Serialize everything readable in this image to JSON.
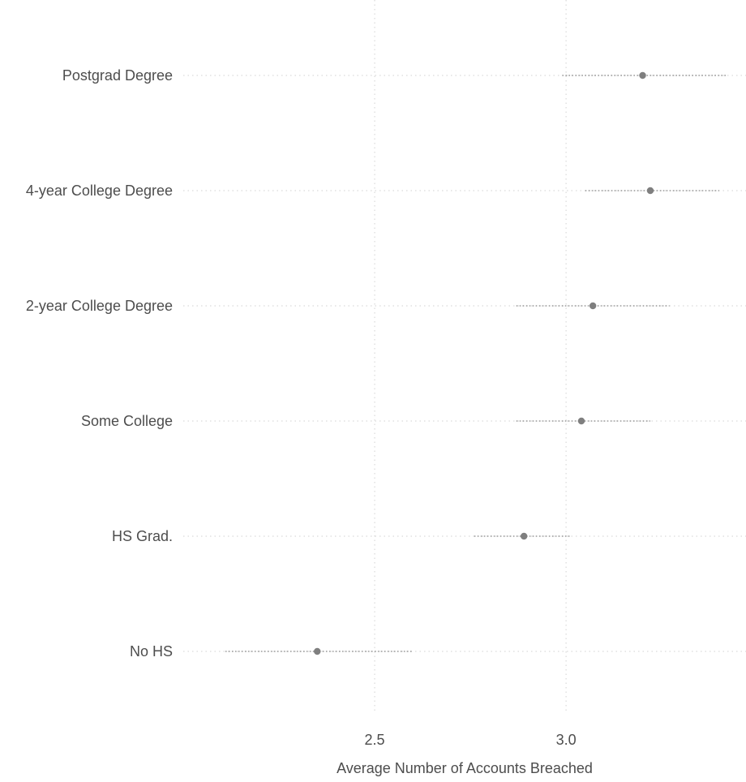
{
  "chart_data": {
    "type": "scatter",
    "subtype": "dot-with-interval",
    "title": "",
    "xlabel": "Average Number of Accounts Breached",
    "ylabel": "",
    "xlim": [
      2.0,
      3.47
    ],
    "x_ticks": [
      2.5,
      3.0
    ],
    "x_tick_labels": [
      "2.5",
      "3.0"
    ],
    "grid": "dotted",
    "point_color": "#7f7f7f",
    "grid_color": "#d9d9d9",
    "categories": [
      "Postgrad Degree",
      "4-year College Degree",
      "2-year College Degree",
      "Some College",
      "HS Grad.",
      "No HS"
    ],
    "series": [
      {
        "values": [
          3.2,
          3.22,
          3.07,
          3.04,
          2.89,
          2.35
        ],
        "lower": [
          2.99,
          3.05,
          2.87,
          2.87,
          2.76,
          2.11
        ],
        "upper": [
          3.42,
          3.4,
          3.27,
          3.22,
          3.01,
          2.6
        ]
      }
    ]
  }
}
